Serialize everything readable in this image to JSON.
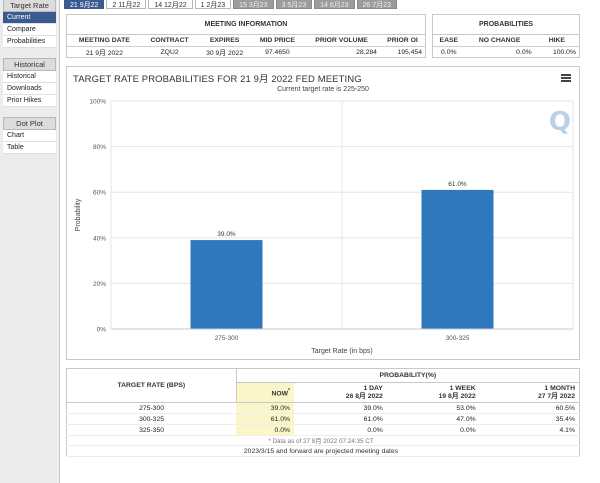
{
  "sidebar": {
    "target_rate_label": "Target Rate",
    "target_rate_items": [
      "Current",
      "Compare",
      "Probabilities"
    ],
    "historical_label": "Historical",
    "historical_items": [
      "Historical",
      "Downloads",
      "Prior Hikes"
    ],
    "dot_plot_label": "Dot Plot",
    "dot_plot_items": [
      "Chart",
      "Table"
    ]
  },
  "tabs": [
    "21 9月22",
    "2 11月22",
    "14 12月22",
    "1 2月23",
    "15 3月23",
    "3 5月23",
    "14 6月23",
    "26 7月23"
  ],
  "meeting_info": {
    "title": "MEETING INFORMATION",
    "headers": [
      "MEETING DATE",
      "CONTRACT",
      "EXPIRES",
      "MID PRICE",
      "PRIOR VOLUME",
      "PRIOR OI"
    ],
    "values": [
      "21 9月 2022",
      "ZQU2",
      "30 9月 2022",
      "97.4650",
      "28,284",
      "195,454"
    ]
  },
  "probabilities": {
    "title": "PROBABILITIES",
    "headers": [
      "EASE",
      "NO CHANGE",
      "HIKE"
    ],
    "values": [
      "0.0%",
      "0.0%",
      "100.0%"
    ]
  },
  "chart": {
    "menu_icon": "hamburger-menu-icon",
    "watermark": "Q"
  },
  "chart_data": {
    "type": "bar",
    "title": "TARGET RATE PROBABILITIES FOR 21 9月 2022 FED MEETING",
    "subtitle": "Current target rate is 225-250",
    "xlabel": "Target Rate (in bps)",
    "ylabel": "Probability",
    "categories": [
      "275-300",
      "300-325"
    ],
    "values": [
      39.0,
      61.0
    ],
    "data_labels": [
      "39.0%",
      "61.0%"
    ],
    "yticks": [
      "0%",
      "20%",
      "40%",
      "60%",
      "80%",
      "100%"
    ],
    "ylim": [
      0,
      100
    ],
    "bar_color": "#2f78bd",
    "grid": true
  },
  "bottom_table": {
    "target_rate_header": "TARGET RATE (BPS)",
    "probability_header": "PROBABILITY(%)",
    "columns": [
      {
        "line1": "NOW",
        "star": "*",
        "line2": ""
      },
      {
        "line1": "1 DAY",
        "line2": "26 8月 2022"
      },
      {
        "line1": "1 WEEK",
        "line2": "19 8月 2022"
      },
      {
        "line1": "1 MONTH",
        "line2": "27 7月 2022"
      }
    ],
    "rows": [
      {
        "rate": "275-300",
        "values": [
          "39.0%",
          "39.0%",
          "53.0%",
          "60.5%"
        ]
      },
      {
        "rate": "300-325",
        "values": [
          "61.0%",
          "61.0%",
          "47.0%",
          "35.4%"
        ]
      },
      {
        "rate": "325-350",
        "values": [
          "0.0%",
          "0.0%",
          "0.0%",
          "4.1%"
        ]
      }
    ],
    "note": "* Data as of 27 8月 2022 07:24:35 CT",
    "forward_note": "2023/3/15 and forward are projected meeting dates"
  },
  "colors": {
    "accent": "#3a5b8f",
    "now_highlight": "#fbf6c9"
  }
}
